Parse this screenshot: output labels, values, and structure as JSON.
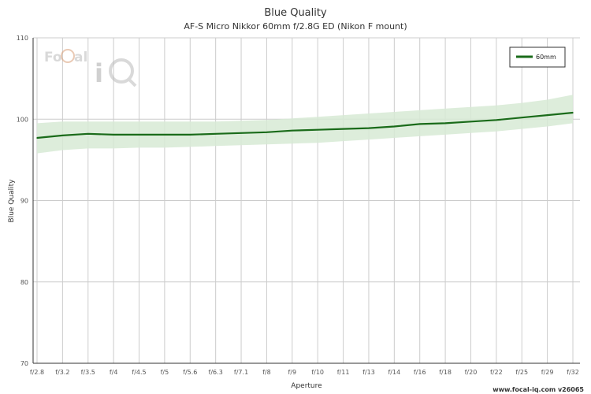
{
  "chart_data": {
    "type": "line",
    "title": "Blue Quality",
    "subtitle": "AF-S Micro Nikkor 60mm f/2.8G ED (Nikon F mount)",
    "xlabel": "Aperture",
    "ylabel": "Blue Quality",
    "ylim": [
      70,
      110
    ],
    "yticks": [
      70,
      80,
      90,
      100,
      110
    ],
    "categories": [
      "f/2.8",
      "f/3.2",
      "f/3.5",
      "f/4",
      "f/4.5",
      "f/5",
      "f/5.6",
      "f/6.3",
      "f/7.1",
      "f/8",
      "f/9",
      "f/10",
      "f/11",
      "f/13",
      "f/14",
      "f/16",
      "f/18",
      "f/20",
      "f/22",
      "f/25",
      "f/29",
      "f/32"
    ],
    "grid": true,
    "legend_position": "top-right",
    "series": [
      {
        "name": "60mm",
        "color": "#1a6b1a",
        "band_color": "#d7ead5",
        "values": [
          97.7,
          98.0,
          98.2,
          98.1,
          98.1,
          98.1,
          98.1,
          98.2,
          98.3,
          98.4,
          98.6,
          98.7,
          98.8,
          98.9,
          99.1,
          99.4,
          99.5,
          99.7,
          99.9,
          100.2,
          100.5,
          100.8
        ],
        "band_low": [
          95.8,
          96.2,
          96.4,
          96.4,
          96.5,
          96.5,
          96.6,
          96.7,
          96.8,
          96.9,
          97.0,
          97.1,
          97.3,
          97.5,
          97.7,
          97.9,
          98.1,
          98.3,
          98.5,
          98.8,
          99.1,
          99.5
        ],
        "band_high": [
          99.5,
          99.7,
          99.7,
          99.7,
          99.7,
          99.7,
          99.7,
          99.7,
          99.8,
          99.9,
          100.1,
          100.3,
          100.5,
          100.7,
          100.9,
          101.1,
          101.3,
          101.5,
          101.7,
          102.0,
          102.4,
          103.0
        ]
      }
    ]
  },
  "watermark": {
    "text": "FoCal iQ",
    "icon": "focal-iq-logo"
  },
  "footer": {
    "text": "www.focal-iq.com  v26065"
  }
}
